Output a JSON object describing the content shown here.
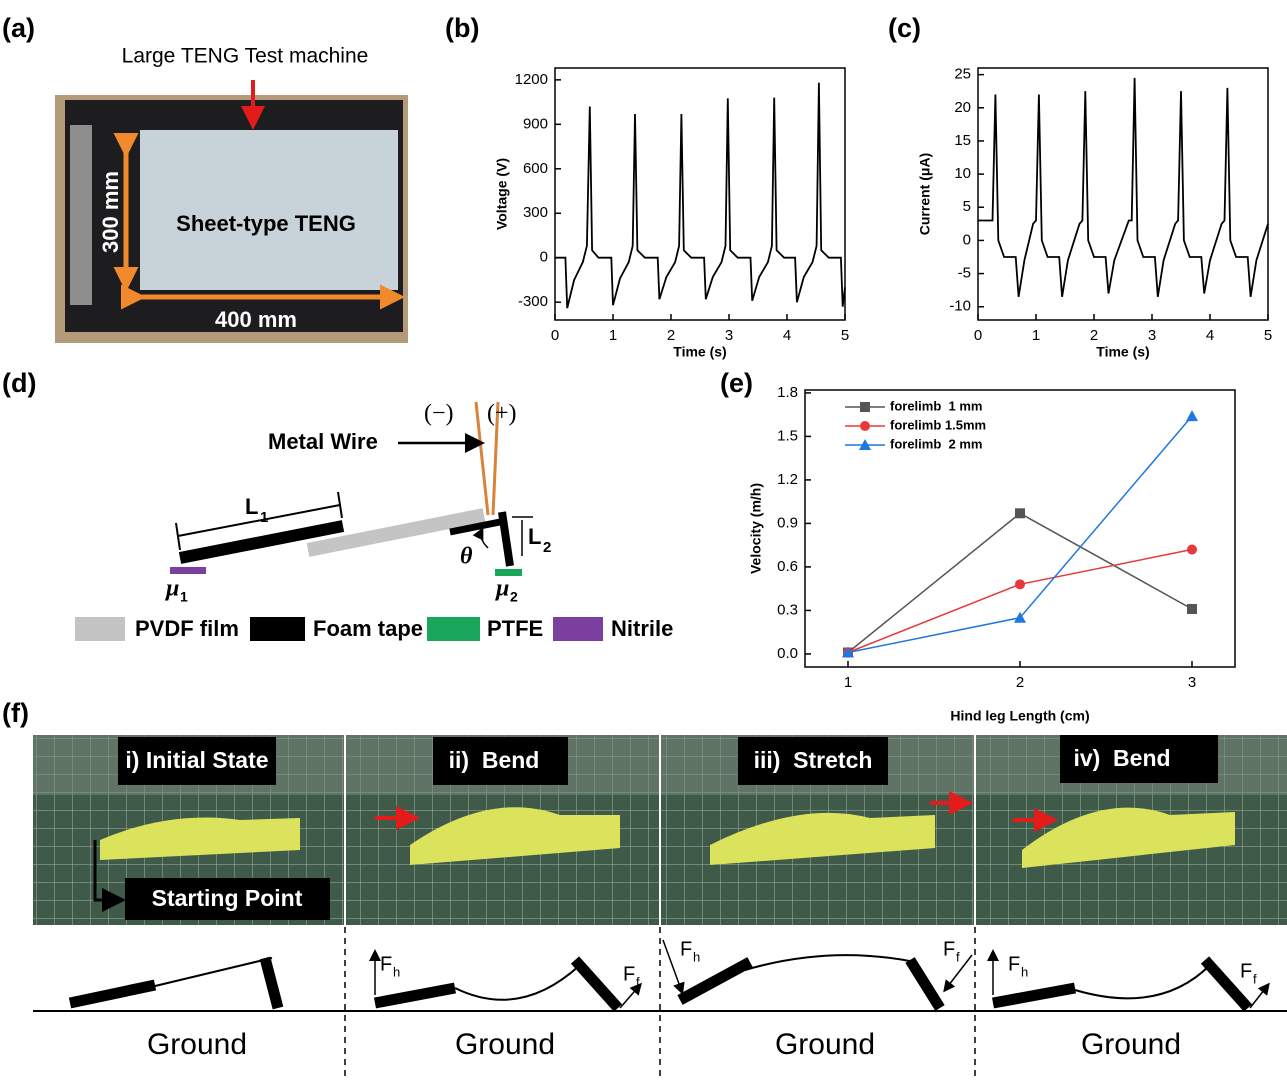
{
  "panel_labels": [
    "(a)",
    "(b)",
    "(c)",
    "(d)",
    "(e)",
    "(f)"
  ],
  "panel_a": {
    "title": "Large TENG Test machine",
    "height": "300 mm",
    "sheet": "Sheet-type TENG",
    "width": "400 mm"
  },
  "panel_d": {
    "wire": "Metal Wire",
    "minus": "(−)",
    "plus": "(+)",
    "length_symbol": "L",
    "sub_1": "1",
    "sub_2": "2",
    "angle": "θ",
    "friction_symbol": "μ",
    "legend": [
      "PVDF film",
      "Foam tape",
      "PTFE",
      "Nitrile"
    ]
  },
  "panel_f": {
    "states": [
      "i) Initial State",
      "ii)  Bend",
      "iii)  Stretch",
      "iv)  Bend"
    ],
    "starting_point": "Starting Point",
    "force_symbol": "F",
    "hind_sub": "h",
    "fore_sub": "f",
    "ground": [
      "Ground",
      "Ground",
      "Ground",
      "Ground"
    ]
  },
  "chart_data": [
    {
      "type": "line",
      "ylabel": "Voltage (V)",
      "xlabel": "Time (s)",
      "color": "#000000",
      "xlim": [
        0,
        5
      ],
      "xticks": [
        0,
        1,
        2,
        3,
        4,
        5
      ],
      "ylim": [
        -420,
        1280
      ],
      "yticks": [
        -300,
        0,
        300,
        600,
        900,
        1200
      ],
      "x": [
        0,
        0.18,
        0.21,
        0.33,
        0.48,
        0.55,
        0.6,
        0.64,
        0.75,
        0.97,
        1.0,
        1.12,
        1.27,
        1.34,
        1.38,
        1.42,
        1.55,
        1.77,
        1.8,
        1.92,
        2.07,
        2.14,
        2.18,
        2.22,
        2.35,
        2.57,
        2.6,
        2.72,
        2.87,
        2.94,
        2.98,
        3.02,
        3.15,
        3.37,
        3.4,
        3.52,
        3.67,
        3.74,
        3.78,
        3.82,
        3.95,
        4.14,
        4.17,
        4.29,
        4.44,
        4.51,
        4.55,
        4.59,
        4.72,
        4.93,
        4.96,
        5.0
      ],
      "values": [
        0,
        0,
        -340,
        -150,
        -30,
        80,
        1020,
        50,
        0,
        0,
        -320,
        -140,
        -30,
        80,
        970,
        50,
        0,
        0,
        -280,
        -130,
        -30,
        80,
        970,
        50,
        0,
        0,
        -280,
        -130,
        -30,
        80,
        1075,
        50,
        0,
        0,
        -290,
        -130,
        -30,
        80,
        1080,
        50,
        0,
        0,
        -300,
        -130,
        -30,
        80,
        1180,
        50,
        0,
        0,
        -330,
        -200
      ]
    },
    {
      "type": "line",
      "ylabel": "Current (μA)",
      "xlabel": "Time (s)",
      "color": "#000000",
      "xlim": [
        0,
        5
      ],
      "xticks": [
        0,
        1,
        2,
        3,
        4,
        5
      ],
      "ylim": [
        -12,
        26
      ],
      "yticks": [
        -10,
        -5,
        0,
        5,
        10,
        15,
        20,
        25
      ],
      "x": [
        0,
        0.25,
        0.3,
        0.35,
        0.45,
        0.65,
        0.7,
        0.8,
        0.95,
        1.0,
        1.05,
        1.1,
        1.2,
        1.4,
        1.45,
        1.55,
        1.75,
        1.8,
        1.85,
        1.9,
        2.0,
        2.2,
        2.25,
        2.35,
        2.6,
        2.65,
        2.7,
        2.75,
        2.85,
        3.05,
        3.1,
        3.2,
        3.4,
        3.45,
        3.5,
        3.55,
        3.65,
        3.85,
        3.9,
        4.0,
        4.2,
        4.25,
        4.3,
        4.35,
        4.45,
        4.65,
        4.7,
        4.8,
        5.0
      ],
      "values": [
        3,
        3,
        22,
        0,
        -2.5,
        -2.5,
        -8.5,
        -3,
        2.5,
        3,
        22,
        0,
        -2.5,
        -2.5,
        -8.5,
        -3,
        2.5,
        3,
        22.5,
        0,
        -2.5,
        -2.5,
        -8,
        -3,
        3,
        3,
        24.5,
        0,
        -2.5,
        -2.5,
        -8.5,
        -3,
        2.5,
        3,
        22.5,
        0,
        -2.5,
        -2.5,
        -8,
        -3,
        2.5,
        3,
        23,
        0,
        -2.5,
        -2.5,
        -8.5,
        -3,
        2.5
      ]
    },
    {
      "type": "line",
      "ylabel": "Velocity (m/h)",
      "xlabel": "Hind leg Length (cm)",
      "legend": "top-left",
      "xlim": [
        0.75,
        3.25
      ],
      "xticks": [
        1,
        2,
        3
      ],
      "ylim": [
        -0.09,
        1.82
      ],
      "yticks": [
        {
          "value": 0,
          "label": "0.0"
        },
        0.3,
        0.6,
        0.9,
        1.2,
        1.5,
        1.8
      ],
      "x": [
        1,
        2,
        3
      ],
      "series": [
        {
          "name": "forelimb  1 mm",
          "color": "#555555",
          "marker": "square",
          "values": [
            0.01,
            0.97,
            0.31
          ]
        },
        {
          "name": "forelimb 1.5mm",
          "color": "#e8393a",
          "marker": "circle",
          "values": [
            0.01,
            0.48,
            0.72
          ]
        },
        {
          "name": "forelimb  2 mm",
          "color": "#1f77e0",
          "marker": "triangle",
          "values": [
            0.01,
            0.25,
            1.64
          ]
        }
      ]
    }
  ]
}
